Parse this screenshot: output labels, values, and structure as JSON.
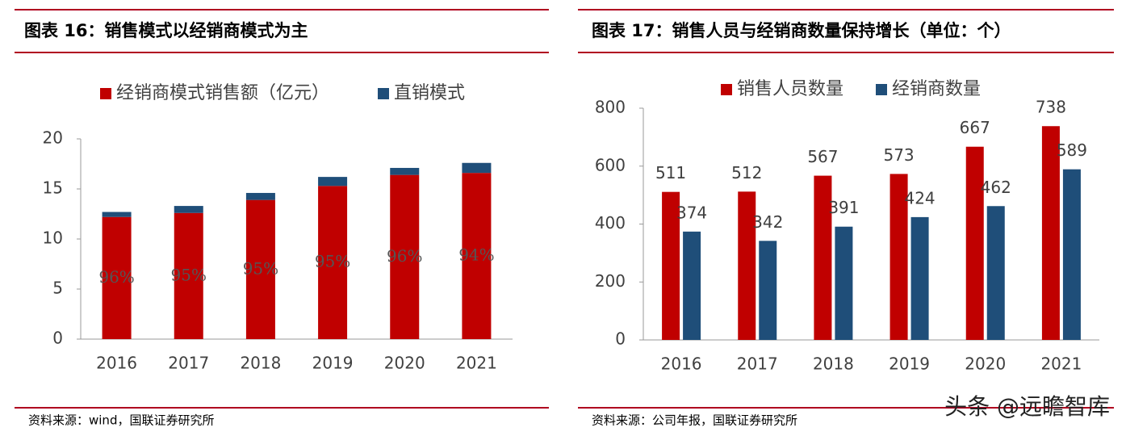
{
  "chart_data": [
    {
      "type": "bar",
      "stacked": true,
      "title": "图表 16：销售模式以经销商模式为主",
      "source": "资料来源：wind，国联证券研究所",
      "categories": [
        "2016",
        "2017",
        "2018",
        "2019",
        "2020",
        "2021"
      ],
      "series": [
        {
          "name": "经销商模式销售额（亿元）",
          "color": "#c00000",
          "values": [
            12.2,
            12.6,
            13.9,
            15.3,
            16.4,
            16.6
          ]
        },
        {
          "name": "直销模式",
          "color": "#1f4e79",
          "values": [
            0.5,
            0.7,
            0.7,
            0.9,
            0.7,
            1.0
          ]
        }
      ],
      "annotations": [
        "96%",
        "95%",
        "95%",
        "95%",
        "96%",
        "94%"
      ],
      "ylim": [
        0,
        20
      ],
      "yticks": [
        0,
        5,
        10,
        15,
        20
      ]
    },
    {
      "type": "bar",
      "stacked": false,
      "title": "图表 17：销售人员与经销商数量保持增长（单位：个）",
      "source": "资料来源：公司年报，国联证券研究所",
      "categories": [
        "2016",
        "2017",
        "2018",
        "2019",
        "2020",
        "2021"
      ],
      "series": [
        {
          "name": "销售人员数量",
          "color": "#c00000",
          "values": [
            511,
            512,
            567,
            573,
            667,
            738
          ]
        },
        {
          "name": "经销商数量",
          "color": "#1f4e79",
          "values": [
            374,
            342,
            391,
            424,
            462,
            589
          ]
        }
      ],
      "data_labels": true,
      "ylim": [
        0,
        800
      ],
      "yticks": [
        0,
        200,
        400,
        600,
        800
      ]
    }
  ],
  "watermark": "头条 @远瞻智库"
}
